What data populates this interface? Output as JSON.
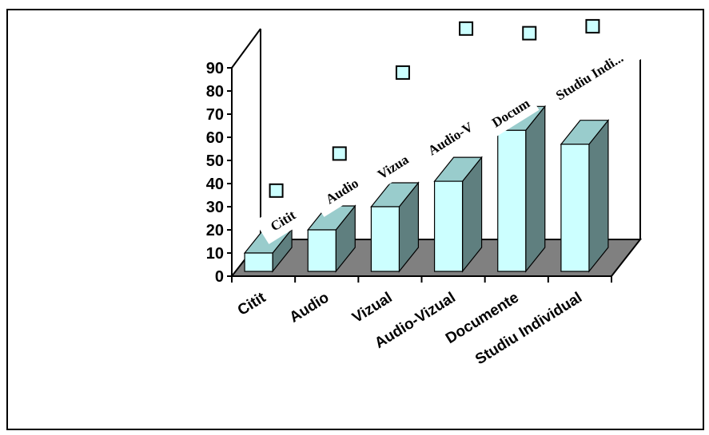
{
  "chart_data": {
    "type": "bar",
    "three_d": true,
    "categories": [
      "Citit",
      "Audio",
      "Vizual",
      "Audio-Vizual",
      "Documente",
      "Studiu Individual"
    ],
    "series": [
      {
        "values": [
          10,
          20,
          30,
          41,
          63,
          57
        ]
      }
    ],
    "markers": [
      28,
      44,
      79,
      98,
      96,
      99
    ],
    "data_labels": [
      "Citit",
      "Audio",
      "Vizua",
      "Audio-V",
      "Docum",
      "Studiu Indi..."
    ],
    "y_ticks": [
      "0",
      "10",
      "20",
      "30",
      "40",
      "50",
      "60",
      "70",
      "80",
      "90"
    ],
    "ylim": [
      0,
      90
    ],
    "grid": false,
    "legend": "none",
    "colors": {
      "bar_front": "#ccffff",
      "bar_side": "#5f7f7f",
      "bar_top": "#99cccc",
      "floor": "#808080",
      "marker_fill": "#ccffff",
      "outline": "#000000"
    }
  }
}
